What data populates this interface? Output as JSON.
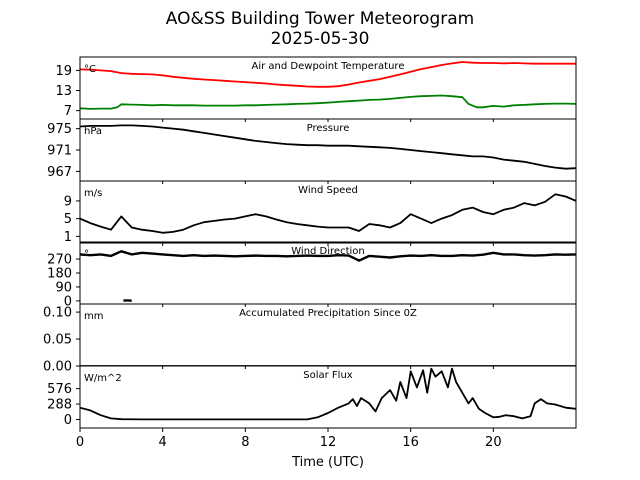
{
  "chart_data": {
    "type": "line",
    "title_line1": "AO&SS Building Tower Meteorogram",
    "title_line2": "2025-05-30",
    "xlabel": "Time (UTC)",
    "xlim": [
      0,
      24
    ],
    "xticks": [
      0,
      4,
      8,
      12,
      16,
      20
    ],
    "xtick_labels": [
      "0",
      "4",
      "8",
      "12",
      "16",
      "20"
    ],
    "panels": [
      {
        "id": "temperature",
        "title": "Air and Dewpoint Temperature",
        "unit": "°C",
        "ylim": [
          4.5,
          23
        ],
        "yticks": [
          7,
          13,
          19
        ],
        "ytick_labels": [
          "7",
          "13",
          "19"
        ],
        "series": [
          {
            "color": "#ff0000",
            "x": [
              0,
              0.5,
              1,
              1.5,
              2,
              2.5,
              3,
              3.5,
              4,
              4.5,
              5,
              5.5,
              6,
              6.5,
              7,
              7.5,
              8,
              8.5,
              9,
              9.5,
              10,
              10.5,
              11,
              11.5,
              12,
              12.5,
              13,
              13.5,
              14,
              14.5,
              15,
              15.5,
              16,
              16.5,
              17,
              17.5,
              18,
              18.5,
              19,
              19.5,
              20,
              20.5,
              21,
              21.5,
              22,
              22.5,
              23,
              23.5,
              24
            ],
            "y": [
              19.3,
              19.2,
              19,
              18.8,
              18.2,
              18,
              17.9,
              17.8,
              17.5,
              17.1,
              16.8,
              16.5,
              16.3,
              16.1,
              15.9,
              15.7,
              15.5,
              15.3,
              15.1,
              14.8,
              14.6,
              14.4,
              14.2,
              14.1,
              14.1,
              14.3,
              14.8,
              15.4,
              15.9,
              16.4,
              17.1,
              17.8,
              18.6,
              19.4,
              20,
              20.6,
              21.1,
              21.5,
              21.3,
              21.2,
              21.2,
              21.1,
              21.2,
              21.1,
              21,
              21,
              21,
              21,
              21
            ]
          },
          {
            "color": "#008000",
            "x": [
              0,
              0.5,
              1,
              1.5,
              1.8,
              2,
              2.5,
              3,
              3.5,
              4,
              4.5,
              5,
              5.5,
              6,
              6.5,
              7,
              7.5,
              8,
              8.5,
              9,
              9.5,
              10,
              10.5,
              11,
              11.5,
              12,
              12.5,
              13,
              13.5,
              14,
              14.5,
              15,
              15.5,
              16,
              16.5,
              17,
              17.5,
              18,
              18.5,
              18.8,
              19.2,
              19.5,
              20,
              20.5,
              21,
              21.5,
              22,
              22.5,
              23,
              23.5,
              24
            ],
            "y": [
              7.7,
              7.5,
              7.6,
              7.6,
              8.0,
              8.9,
              8.8,
              8.7,
              8.6,
              8.7,
              8.6,
              8.6,
              8.6,
              8.5,
              8.5,
              8.5,
              8.5,
              8.6,
              8.6,
              8.7,
              8.8,
              8.9,
              9.0,
              9.1,
              9.2,
              9.4,
              9.6,
              9.8,
              10.0,
              10.2,
              10.3,
              10.5,
              10.8,
              11.1,
              11.3,
              11.4,
              11.5,
              11.3,
              11.0,
              9.0,
              8.0,
              8.0,
              8.4,
              8.2,
              8.6,
              8.7,
              8.9,
              9.0,
              9.1,
              9.1,
              9.0
            ]
          }
        ]
      },
      {
        "id": "pressure",
        "title": "Pressure",
        "unit": "hPa",
        "ylim": [
          965.2,
          976.8
        ],
        "yticks": [
          967,
          971,
          975
        ],
        "ytick_labels": [
          "967",
          "971",
          "975"
        ],
        "series": [
          {
            "color": "#000000",
            "x": [
              0,
              0.5,
              1,
              1.5,
              2,
              2.5,
              3,
              3.5,
              4,
              4.5,
              5,
              5.5,
              6,
              6.5,
              7,
              7.5,
              8,
              8.5,
              9,
              9.5,
              10,
              10.5,
              11,
              11.5,
              12,
              12.5,
              13,
              13.5,
              14,
              14.5,
              15,
              15.5,
              16,
              16.5,
              17,
              17.5,
              18,
              18.5,
              19,
              19.5,
              20,
              20.5,
              21,
              21.5,
              22,
              22.5,
              23,
              23.5,
              24
            ],
            "y": [
              975.4,
              975.5,
              975.5,
              975.5,
              975.6,
              975.6,
              975.5,
              975.4,
              975.2,
              975.0,
              974.8,
              974.5,
              974.2,
              973.9,
              973.6,
              973.3,
              973.0,
              972.7,
              972.5,
              972.3,
              972.1,
              972.0,
              971.9,
              971.9,
              971.8,
              971.8,
              971.8,
              971.7,
              971.6,
              971.5,
              971.4,
              971.2,
              971.0,
              970.8,
              970.6,
              970.4,
              970.2,
              970.0,
              969.8,
              969.8,
              969.6,
              969.2,
              969.0,
              968.8,
              968.4,
              968.0,
              967.7,
              967.5,
              967.6
            ]
          }
        ]
      },
      {
        "id": "wind_speed",
        "title": "Wind Speed",
        "unit": "m/s",
        "ylim": [
          -0.5,
          13.5
        ],
        "yticks": [
          1,
          5,
          9
        ],
        "ytick_labels": [
          "1",
          "5",
          "9"
        ],
        "series": [
          {
            "color": "#000000",
            "x": [
              0,
              0.5,
              1,
              1.5,
              2,
              2.5,
              3,
              3.5,
              4,
              4.5,
              5,
              5.5,
              6,
              6.5,
              7,
              7.5,
              8,
              8.5,
              9,
              9.5,
              10,
              10.5,
              11,
              11.5,
              12,
              12.5,
              13,
              13.5,
              14,
              14.5,
              15,
              15.5,
              16,
              16.5,
              17,
              17.5,
              18,
              18.5,
              19,
              19.5,
              20,
              20.5,
              21,
              21.5,
              22,
              22.5,
              23,
              23.5,
              24
            ],
            "y": [
              5.0,
              4.0,
              3.2,
              2.5,
              5.5,
              3.0,
              2.5,
              2.2,
              1.8,
              2.0,
              2.5,
              3.5,
              4.2,
              4.5,
              4.8,
              5.0,
              5.5,
              6.0,
              5.5,
              4.8,
              4.2,
              3.8,
              3.5,
              3.2,
              3.0,
              3.0,
              3.0,
              2.2,
              3.8,
              3.5,
              3.0,
              4.0,
              6.0,
              5.0,
              4.0,
              5.0,
              5.8,
              7.0,
              7.5,
              6.5,
              6.0,
              7.0,
              7.5,
              8.5,
              8.0,
              8.8,
              10.5,
              10.0,
              9.0
            ]
          }
        ]
      },
      {
        "id": "wind_direction",
        "title": "Wind Direction",
        "unit": "°",
        "ylim": [
          -20,
          380
        ],
        "yticks": [
          0,
          90,
          180,
          270
        ],
        "ytick_labels": [
          "0",
          "90",
          "180",
          "270"
        ],
        "series": [
          {
            "color": "#000000",
            "x": [
              0,
              0.5,
              1,
              1.5,
              2,
              2.5,
              3,
              3.5,
              4,
              4.5,
              5,
              5.5,
              6,
              6.5,
              7,
              7.5,
              8,
              8.5,
              9,
              9.5,
              10,
              10.5,
              11,
              11.5,
              12,
              12.5,
              13,
              13.5,
              14,
              14.5,
              15,
              15.5,
              16,
              16.5,
              17,
              17.5,
              18,
              18.5,
              19,
              19.5,
              20,
              20.5,
              21,
              21.5,
              22,
              22.5,
              23,
              23.5,
              24
            ],
            "y": [
              300,
              295,
              300,
              290,
              320,
              300,
              310,
              305,
              300,
              295,
              290,
              295,
              290,
              292,
              290,
              288,
              290,
              292,
              290,
              290,
              288,
              290,
              292,
              290,
              290,
              295,
              292,
              260,
              290,
              285,
              280,
              288,
              292,
              290,
              295,
              290,
              290,
              295,
              292,
              298,
              310,
              300,
              300,
              295,
              292,
              295,
              300,
              298,
              300
            ]
          },
          {
            "color": "#000000",
            "x": [
              2.1,
              2.3,
              2.5
            ],
            "y": [
              2,
              3,
              1
            ]
          }
        ]
      },
      {
        "id": "precipitation",
        "title": "Accumulated Precipitation Since 0Z",
        "unit": "mm",
        "ylim": [
          0,
          0.115
        ],
        "yticks": [
          0.0,
          0.05,
          0.1
        ],
        "ytick_labels": [
          "0.00",
          "0.05",
          "0.10"
        ],
        "series": [
          {
            "color": "#000000",
            "x": [
              0,
              24
            ],
            "y": [
              0,
              0
            ]
          }
        ]
      },
      {
        "id": "solar_flux",
        "title": "Solar Flux",
        "unit": "W/m^2",
        "ylim": [
          -160,
          1000
        ],
        "yticks": [
          0,
          288,
          576
        ],
        "ytick_labels": [
          "0",
          "288",
          "576"
        ],
        "series": [
          {
            "color": "#000000",
            "x": [
              0,
              0.5,
              1,
              1.5,
              2,
              3,
              4,
              5,
              6,
              7,
              8,
              9,
              10,
              10.5,
              11,
              11.5,
              12,
              12.5,
              13,
              13.2,
              13.4,
              13.6,
              13.8,
              14,
              14.3,
              14.6,
              15,
              15.3,
              15.5,
              15.8,
              16,
              16.3,
              16.6,
              16.8,
              17,
              17.2,
              17.5,
              17.8,
              18,
              18.2,
              18.5,
              18.8,
              19,
              19.3,
              19.6,
              20,
              20.3,
              20.6,
              21,
              21.4,
              21.8,
              22,
              22.3,
              22.6,
              23,
              23.5,
              24
            ],
            "y": [
              220,
              170,
              80,
              20,
              5,
              0,
              0,
              0,
              0,
              0,
              0,
              0,
              0,
              0,
              0,
              40,
              120,
              220,
              300,
              380,
              250,
              400,
              350,
              300,
              150,
              400,
              550,
              350,
              700,
              400,
              900,
              600,
              920,
              500,
              950,
              800,
              900,
              600,
              950,
              700,
              500,
              300,
              400,
              200,
              120,
              40,
              50,
              80,
              60,
              20,
              60,
              300,
              380,
              300,
              280,
              220,
              200
            ]
          }
        ]
      }
    ]
  }
}
